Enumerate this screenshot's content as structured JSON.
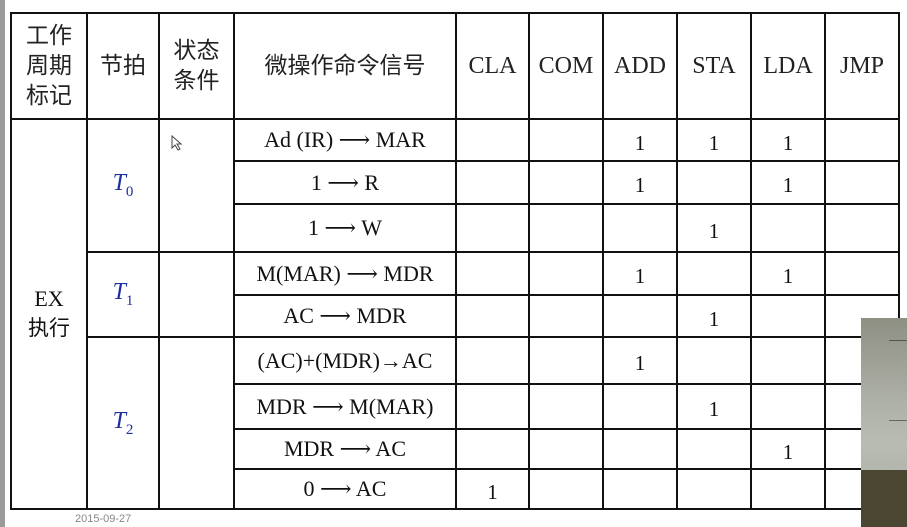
{
  "header": {
    "cycle": "工作周期标记",
    "beat": "节拍",
    "condition": "状态条件",
    "micro_op": "微操作命令信号",
    "instructions": [
      "CLA",
      "COM",
      "ADD",
      "STA",
      "LDA",
      "JMP"
    ]
  },
  "cycle_label": {
    "line1": "EX",
    "line2": "执行"
  },
  "beats": [
    {
      "t": "T",
      "sub": "0"
    },
    {
      "t": "T",
      "sub": "1"
    },
    {
      "t": "T",
      "sub": "2"
    }
  ],
  "rows": [
    {
      "op": "Ad (IR) ⟶ MAR",
      "marks": [
        "",
        "",
        "1",
        "1",
        "1",
        ""
      ]
    },
    {
      "op": "1 ⟶ R",
      "marks": [
        "",
        "",
        "1",
        "",
        "1",
        ""
      ]
    },
    {
      "op": "1 ⟶ W",
      "marks": [
        "",
        "",
        "",
        "1",
        "",
        ""
      ]
    },
    {
      "op": "M(MAR) ⟶ MDR",
      "marks": [
        "",
        "",
        "1",
        "",
        "1",
        ""
      ]
    },
    {
      "op": "AC ⟶ MDR",
      "marks": [
        "",
        "",
        "",
        "1",
        "",
        ""
      ]
    },
    {
      "op": "(AC)+(MDR)→AC",
      "marks": [
        "",
        "",
        "1",
        "",
        "",
        ""
      ]
    },
    {
      "op": "MDR ⟶ M(MAR)",
      "marks": [
        "",
        "",
        "",
        "1",
        "",
        ""
      ]
    },
    {
      "op": "MDR ⟶ AC",
      "marks": [
        "",
        "",
        "",
        "",
        "1",
        ""
      ]
    },
    {
      "op": "0 ⟶ AC",
      "marks": [
        "1",
        "",
        "",
        "",
        "",
        ""
      ]
    }
  ],
  "footer": {
    "date": "2015-09-27"
  }
}
